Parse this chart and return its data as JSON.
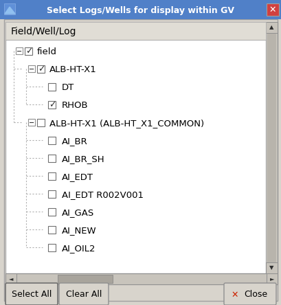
{
  "title": "Select Logs/Wells for display within GV",
  "title_bg": "#5080c8",
  "title_fg": "#ffffff",
  "bg_color": "#d8d4cc",
  "panel_bg": "#ffffff",
  "header_bg": "#e0ddd5",
  "header_text": "Field/Well/Log",
  "tree_items": [
    {
      "label": "field",
      "level": 0,
      "checked": true,
      "expanded": true,
      "has_expand": true
    },
    {
      "label": "ALB-HT-X1",
      "level": 1,
      "checked": true,
      "expanded": true,
      "has_expand": true
    },
    {
      "label": "DT",
      "level": 2,
      "checked": false,
      "expanded": false,
      "has_expand": false
    },
    {
      "label": "RHOB",
      "level": 2,
      "checked": true,
      "expanded": false,
      "has_expand": false
    },
    {
      "label": "ALB-HT-X1 (ALB-HT_X1_COMMON)",
      "level": 1,
      "checked": false,
      "expanded": true,
      "has_expand": true
    },
    {
      "label": "AI_BR",
      "level": 2,
      "checked": false,
      "expanded": false,
      "has_expand": false
    },
    {
      "label": "AI_BR_SH",
      "level": 2,
      "checked": false,
      "expanded": false,
      "has_expand": false
    },
    {
      "label": "AI_EDT",
      "level": 2,
      "checked": false,
      "expanded": false,
      "has_expand": false
    },
    {
      "label": "AI_EDT R002V001",
      "level": 2,
      "checked": false,
      "expanded": false,
      "has_expand": false
    },
    {
      "label": "AI_GAS",
      "level": 2,
      "checked": false,
      "expanded": false,
      "has_expand": false
    },
    {
      "label": "AI_NEW",
      "level": 2,
      "checked": false,
      "expanded": false,
      "has_expand": false
    },
    {
      "label": "AI_OIL2",
      "level": 2,
      "checked": false,
      "expanded": false,
      "has_expand": false
    }
  ],
  "scrollbar_color": "#c8c4bc",
  "scrollbar_btn_color": "#c8c4bc",
  "close_icon_color": "#cc2200",
  "button_bg": "#d8d4cc",
  "figw": 4.1,
  "figh": 4.44,
  "dpi": 100
}
